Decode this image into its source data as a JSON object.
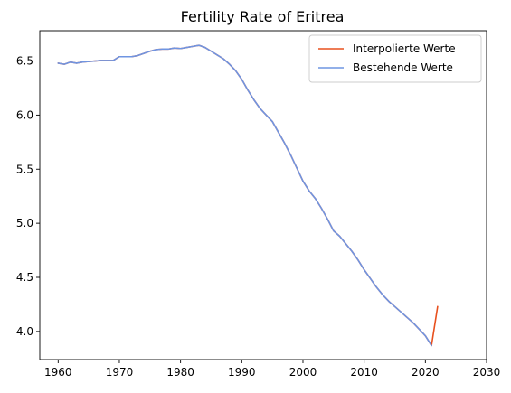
{
  "chart_data": {
    "type": "line",
    "title": "Fertility Rate of Eritrea",
    "xlabel": "",
    "ylabel": "",
    "xlim": [
      1957,
      2030
    ],
    "ylim": [
      3.74,
      6.78
    ],
    "grid": false,
    "legend_position": "top-right",
    "x_ticks": [
      1960,
      1970,
      1980,
      1990,
      2000,
      2010,
      2020,
      2030
    ],
    "y_ticks": [
      4.0,
      4.5,
      5.0,
      5.5,
      6.0,
      6.5
    ],
    "series": [
      {
        "name": "Interpolierte Werte",
        "color": "#e8501e",
        "x": [
          1960,
          1961,
          1962,
          1963,
          1964,
          1965,
          1966,
          1967,
          1968,
          1969,
          1970,
          1971,
          1972,
          1973,
          1974,
          1975,
          1976,
          1977,
          1978,
          1979,
          1980,
          1981,
          1982,
          1983,
          1984,
          1985,
          1986,
          1987,
          1988,
          1989,
          1990,
          1991,
          1992,
          1993,
          1994,
          1995,
          1996,
          1997,
          1998,
          1999,
          2000,
          2001,
          2002,
          2003,
          2004,
          2005,
          2006,
          2007,
          2008,
          2009,
          2010,
          2011,
          2012,
          2013,
          2014,
          2015,
          2016,
          2017,
          2018,
          2019,
          2020,
          2021,
          2022
        ],
        "y": [
          6.48,
          6.47,
          6.49,
          6.48,
          6.49,
          6.495,
          6.5,
          6.505,
          6.505,
          6.505,
          6.54,
          6.54,
          6.54,
          6.55,
          6.57,
          6.59,
          6.605,
          6.61,
          6.61,
          6.62,
          6.615,
          6.625,
          6.635,
          6.645,
          6.625,
          6.59,
          6.555,
          6.52,
          6.47,
          6.41,
          6.33,
          6.23,
          6.14,
          6.06,
          6.0,
          5.94,
          5.84,
          5.74,
          5.63,
          5.51,
          5.39,
          5.3,
          5.23,
          5.14,
          5.04,
          4.93,
          4.88,
          4.81,
          4.74,
          4.66,
          4.57,
          4.49,
          4.41,
          4.34,
          4.28,
          4.23,
          4.18,
          4.13,
          4.08,
          4.02,
          3.96,
          3.87,
          4.23
        ]
      },
      {
        "name": "Bestehende Werte",
        "color": "#6f95e2",
        "x": [
          1960,
          1961,
          1962,
          1963,
          1964,
          1965,
          1966,
          1967,
          1968,
          1969,
          1970,
          1971,
          1972,
          1973,
          1974,
          1975,
          1976,
          1977,
          1978,
          1979,
          1980,
          1981,
          1982,
          1983,
          1984,
          1985,
          1986,
          1987,
          1988,
          1989,
          1990,
          1991,
          1992,
          1993,
          1994,
          1995,
          1996,
          1997,
          1998,
          1999,
          2000,
          2001,
          2002,
          2003,
          2004,
          2005,
          2006,
          2007,
          2008,
          2009,
          2010,
          2011,
          2012,
          2013,
          2014,
          2015,
          2016,
          2017,
          2018,
          2019,
          2020,
          2021
        ],
        "y": [
          6.48,
          6.47,
          6.49,
          6.48,
          6.49,
          6.495,
          6.5,
          6.505,
          6.505,
          6.505,
          6.54,
          6.54,
          6.54,
          6.55,
          6.57,
          6.59,
          6.605,
          6.61,
          6.61,
          6.62,
          6.615,
          6.625,
          6.635,
          6.645,
          6.625,
          6.59,
          6.555,
          6.52,
          6.47,
          6.41,
          6.33,
          6.23,
          6.14,
          6.06,
          6.0,
          5.94,
          5.84,
          5.74,
          5.63,
          5.51,
          5.39,
          5.3,
          5.23,
          5.14,
          5.04,
          4.93,
          4.88,
          4.81,
          4.74,
          4.66,
          4.57,
          4.49,
          4.41,
          4.34,
          4.28,
          4.23,
          4.18,
          4.13,
          4.08,
          4.02,
          3.96,
          3.87
        ]
      }
    ]
  }
}
